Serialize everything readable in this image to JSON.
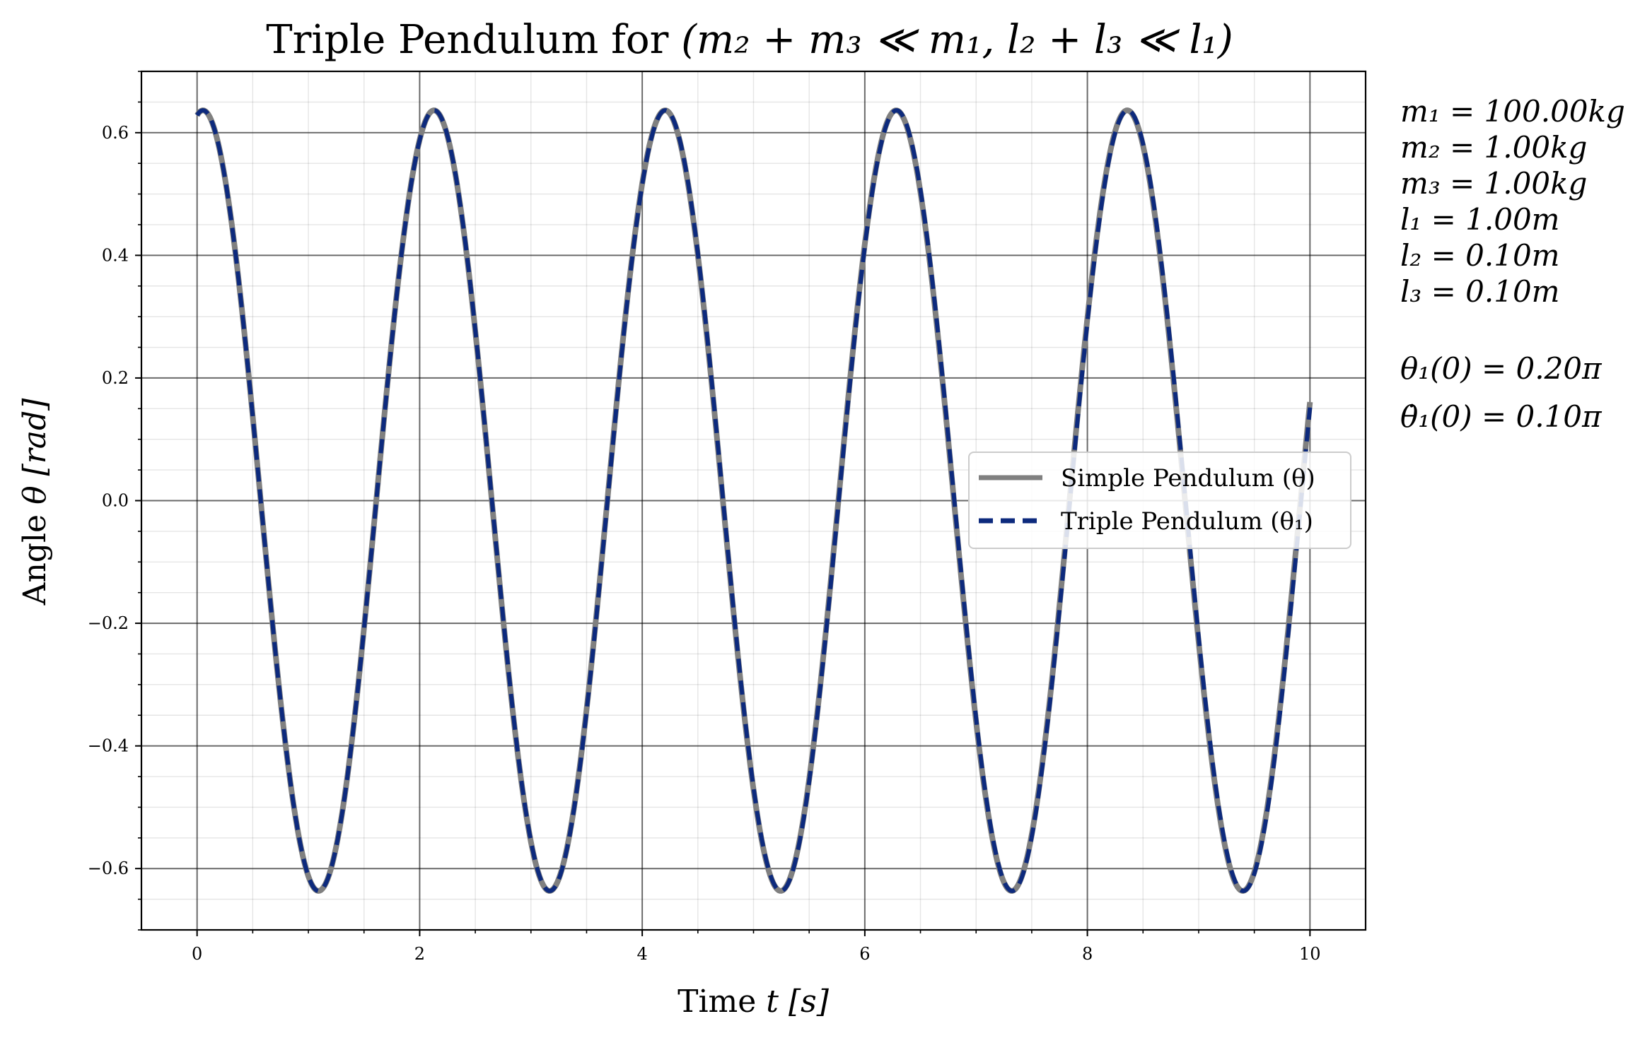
{
  "chart_data": {
    "type": "line",
    "title": {
      "prefix": "Triple Pendulum for ",
      "math": "(m₂ + m₃ ≪ m₁, l₂ + l₃ ≪ l₁)"
    },
    "xlabel": {
      "prefix": "Time ",
      "math": "t [s]"
    },
    "ylabel": {
      "prefix": "Angle ",
      "math": "θ [rad]"
    },
    "xlim": [
      -0.5,
      10.5
    ],
    "ylim": [
      -0.7,
      0.7
    ],
    "x_major_ticks": [
      0,
      2,
      4,
      6,
      8,
      10
    ],
    "x_tick_labels": [
      "0",
      "2",
      "4",
      "6",
      "8",
      "10"
    ],
    "x_minor_step": 0.5,
    "y_major_ticks": [
      0.6,
      0.4,
      0.2,
      0.0,
      -0.2,
      -0.4,
      -0.6
    ],
    "y_tick_labels": [
      "0.6",
      "0.4",
      "0.2",
      "0.0",
      "−0.2",
      "−0.4",
      "−0.6"
    ],
    "y_minor_step": 0.05,
    "grid": true,
    "legend_position": "center-right",
    "series": [
      {
        "name": "Simple Pendulum (θ)",
        "style": "solid",
        "color": "#808080",
        "model": {
          "x_start": 0,
          "x_end": 10,
          "amplitude": 0.6365,
          "period": 2.0764,
          "phase": -0.1595
        }
      },
      {
        "name": "Triple Pendulum (θ₁)",
        "style": "dashed",
        "color": "#0d2a7d",
        "model": {
          "x_start": 0,
          "x_end": 10,
          "amplitude": 0.6365,
          "period": 2.0774,
          "phase": -0.1595
        }
      }
    ]
  },
  "parameters": {
    "lines": [
      "m₁ = 100.00kg",
      "m₂ = 1.00kg",
      "m₃ = 1.00kg",
      "l₁ = 1.00m",
      "l₂ = 0.10m",
      "l₃ = 0.10m"
    ],
    "initial": [
      "θ₁(0) = 0.20π",
      "θ̇₁(0) = 0.10π"
    ]
  }
}
